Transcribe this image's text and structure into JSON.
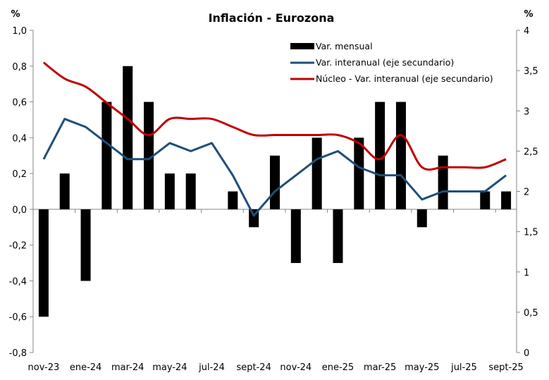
{
  "chart_data": {
    "type": "bar+line",
    "title": "Inflación - Eurozona",
    "ylabel_left": "%",
    "ylabel_right": "%",
    "xlabel": "",
    "categories": [
      "nov-23",
      "dic-23",
      "ene-24",
      "feb-24",
      "mar-24",
      "abr-24",
      "may-24",
      "jun-24",
      "jul-24",
      "ago-24",
      "sept-24",
      "oct-24",
      "nov-24",
      "dic-24",
      "ene-25",
      "feb-25",
      "mar-25",
      "abr-25",
      "may-25",
      "jun-25",
      "jul-25",
      "ago-25",
      "sept-25"
    ],
    "x_tick_labels": [
      "nov-23",
      "ene-24",
      "mar-24",
      "may-24",
      "jul-24",
      "sept-24",
      "nov-24",
      "ene-25",
      "mar-25",
      "may-25",
      "jul-25",
      "sept-25"
    ],
    "y_left": {
      "range": [
        -0.8,
        1.0
      ],
      "ticks": [
        "1,0",
        "0,8",
        "0,6",
        "0,4",
        "0,2",
        "0,0",
        "-0,2",
        "-0,4",
        "-0,6",
        "-0,8"
      ],
      "tick_values": [
        1.0,
        0.8,
        0.6,
        0.4,
        0.2,
        0.0,
        -0.2,
        -0.4,
        -0.6,
        -0.8
      ]
    },
    "y_right": {
      "range": [
        0,
        4
      ],
      "ticks": [
        "4",
        "3,5",
        "3",
        "2,5",
        "2",
        "1,5",
        "1",
        "0,5",
        "0"
      ],
      "tick_values": [
        4,
        3.5,
        3,
        2.5,
        2,
        1.5,
        1,
        0.5,
        0
      ]
    },
    "grid": false,
    "legend_position": "top-right",
    "series": [
      {
        "name": "Var. mensual",
        "type": "bar",
        "axis": "left",
        "color": "#000000",
        "values": [
          -0.6,
          0.2,
          -0.4,
          0.6,
          0.8,
          0.6,
          0.2,
          0.2,
          0.0,
          0.1,
          -0.1,
          0.3,
          -0.3,
          0.4,
          -0.3,
          0.4,
          0.6,
          0.6,
          -0.1,
          0.3,
          0.0,
          0.1,
          0.1
        ]
      },
      {
        "name": "Var. interanual (eje secundario)",
        "type": "line",
        "axis": "right",
        "color": "#1F4E79",
        "values": [
          2.4,
          2.9,
          2.8,
          2.6,
          2.4,
          2.4,
          2.6,
          2.5,
          2.6,
          2.2,
          1.7,
          2.0,
          2.2,
          2.4,
          2.5,
          2.3,
          2.2,
          2.2,
          1.9,
          2.0,
          2.0,
          2.0,
          2.2
        ]
      },
      {
        "name": "Núcleo - Var. interanual (eje secundario)",
        "type": "line",
        "axis": "right",
        "color": "#C00000",
        "values": [
          3.6,
          3.4,
          3.3,
          3.1,
          2.9,
          2.7,
          2.9,
          2.9,
          2.9,
          2.8,
          2.7,
          2.7,
          2.7,
          2.7,
          2.7,
          2.6,
          2.4,
          2.7,
          2.3,
          2.3,
          2.3,
          2.3,
          2.4
        ]
      }
    ]
  }
}
